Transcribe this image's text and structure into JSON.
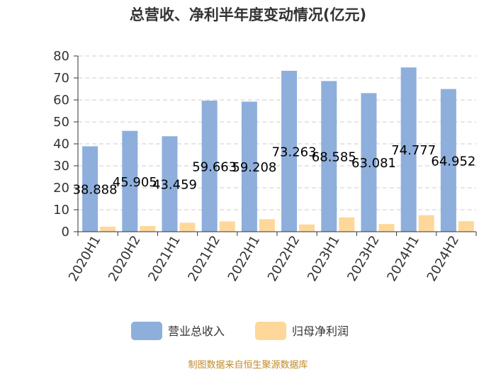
{
  "chart_data": {
    "type": "bar",
    "title": "总营收、净利半年度变动情况(亿元)",
    "categories": [
      "2020H1",
      "2020H2",
      "2021H1",
      "2021H2",
      "2022H1",
      "2022H2",
      "2023H1",
      "2023H2",
      "2024H1",
      "2024H2"
    ],
    "series": [
      {
        "name": "营业总收入",
        "color": "#8eafdc",
        "values": [
          38.888,
          45.905,
          43.459,
          59.663,
          59.208,
          73.263,
          68.585,
          63.081,
          74.777,
          64.952
        ],
        "labels": [
          "38.888",
          "45.905",
          "43.459",
          "59.663",
          "59.208",
          "73.263",
          "68.585",
          "63.081",
          "74.777",
          "64.952"
        ]
      },
      {
        "name": "归母净利润",
        "color": "#fdd89a",
        "values": [
          2.3,
          2.6,
          4.1,
          4.7,
          5.7,
          3.3,
          6.5,
          3.5,
          7.5,
          4.8
        ]
      }
    ],
    "yticks": [
      "0",
      "10",
      "20",
      "30",
      "40",
      "50",
      "60",
      "70",
      "80"
    ],
    "ylim": [
      0,
      80
    ],
    "grid": true,
    "legend": "bottom-center"
  },
  "source_note": "制图数据来自恒生聚源数据库"
}
